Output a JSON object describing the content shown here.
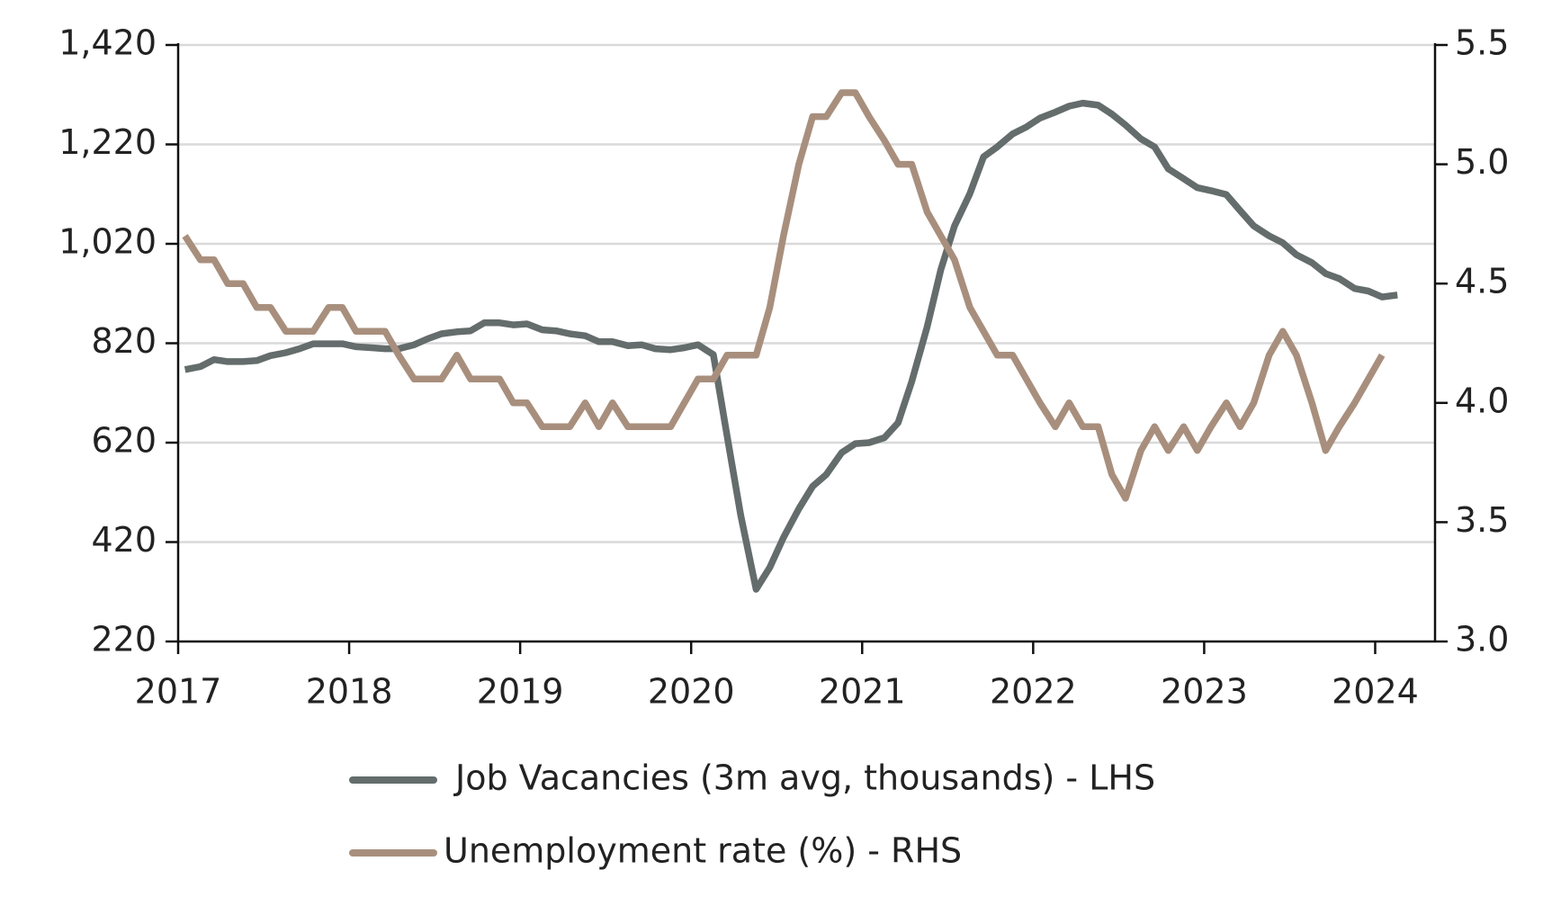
{
  "chart_data": {
    "type": "line",
    "x": [
      2017.04,
      2017.13,
      2017.21,
      2017.29,
      2017.38,
      2017.46,
      2017.54,
      2017.63,
      2017.71,
      2017.79,
      2017.88,
      2017.96,
      2018.04,
      2018.13,
      2018.21,
      2018.29,
      2018.38,
      2018.46,
      2018.54,
      2018.63,
      2018.71,
      2018.79,
      2018.88,
      2018.96,
      2019.04,
      2019.13,
      2019.21,
      2019.29,
      2019.38,
      2019.46,
      2019.54,
      2019.63,
      2019.71,
      2019.79,
      2019.88,
      2019.96,
      2020.04,
      2020.13,
      2020.21,
      2020.29,
      2020.38,
      2020.46,
      2020.54,
      2020.63,
      2020.71,
      2020.79,
      2020.88,
      2020.96,
      2021.04,
      2021.13,
      2021.21,
      2021.29,
      2021.38,
      2021.46,
      2021.54,
      2021.63,
      2021.71,
      2021.79,
      2021.88,
      2021.96,
      2022.04,
      2022.13,
      2022.21,
      2022.29,
      2022.38,
      2022.46,
      2022.54,
      2022.63,
      2022.71,
      2022.79,
      2022.88,
      2022.96,
      2023.04,
      2023.13,
      2023.21,
      2023.29,
      2023.38,
      2023.46,
      2023.54,
      2023.63,
      2023.71,
      2023.79,
      2023.88,
      2023.96,
      2024.04,
      2024.13
    ],
    "series": [
      {
        "name": "Job Vacancies (3m avg, thousands) - LHS",
        "color": "#646c6c",
        "axis": "y",
        "values": [
          767,
          773,
          787,
          783,
          783,
          785,
          795,
          801,
          809,
          819,
          819,
          819,
          813,
          811,
          809,
          809,
          817,
          829,
          839,
          843,
          845,
          861,
          861,
          857,
          859,
          847,
          845,
          839,
          835,
          823,
          823,
          815,
          817,
          809,
          807,
          811,
          817,
          797,
          634,
          474,
          325,
          369,
          429,
          487,
          532,
          556,
          600,
          618,
          620,
          630,
          660,
          743,
          853,
          968,
          1056,
          1121,
          1195,
          1215,
          1241,
          1255,
          1273,
          1285,
          1297,
          1303,
          1299,
          1281,
          1259,
          1231,
          1215,
          1171,
          1151,
          1133,
          1127,
          1119,
          1087,
          1056,
          1036,
          1022,
          998,
          982,
          960,
          950,
          930,
          925,
          913,
          917
        ]
      },
      {
        "name": "Unemployment rate (%) - RHS",
        "color": "#a88f7d",
        "axis": "y2",
        "values": [
          4.7,
          4.6,
          4.6,
          4.5,
          4.5,
          4.4,
          4.4,
          4.3,
          4.3,
          4.3,
          4.4,
          4.4,
          4.3,
          4.3,
          4.3,
          4.2,
          4.1,
          4.1,
          4.1,
          4.2,
          4.1,
          4.1,
          4.1,
          4.0,
          4.0,
          3.9,
          3.9,
          3.9,
          4.0,
          3.9,
          4.0,
          3.9,
          3.9,
          3.9,
          3.9,
          4.0,
          4.1,
          4.1,
          4.2,
          4.2,
          4.2,
          4.4,
          4.7,
          5.0,
          5.2,
          5.2,
          5.3,
          5.3,
          5.2,
          5.1,
          5.0,
          5.0,
          4.8,
          4.7,
          4.6,
          4.4,
          4.3,
          4.2,
          4.2,
          4.1,
          4.0,
          3.9,
          4.0,
          3.9,
          3.9,
          3.7,
          3.6,
          3.8,
          3.9,
          3.8,
          3.9,
          3.8,
          3.9,
          4.0,
          3.9,
          4.0,
          4.2,
          4.3,
          4.2,
          4.0,
          3.8,
          3.9,
          4.0,
          4.1,
          4.2,
          null
        ]
      }
    ],
    "xlim": [
      2017,
      2024.35
    ],
    "xticks": [
      2017,
      2018,
      2019,
      2020,
      2021,
      2022,
      2023,
      2024
    ],
    "ylim": [
      220,
      1420
    ],
    "yticks": [
      220,
      420,
      620,
      820,
      {
        "value": 1020,
        "label": "1,020"
      },
      {
        "value": 1220,
        "label": "1,220"
      },
      {
        "value": 1420,
        "label": "1,420"
      }
    ],
    "y2lim": [
      3,
      5.5
    ],
    "y2ticks": [
      {
        "value": 3,
        "label": "3.0"
      },
      {
        "value": 3.5,
        "label": "3.5"
      },
      {
        "value": 4,
        "label": "4.0"
      },
      {
        "value": 4.5,
        "label": "4.5"
      },
      {
        "value": 5,
        "label": "5.0"
      },
      {
        "value": 5.5,
        "label": "5.5"
      }
    ],
    "grid": true,
    "legend": "bottom"
  }
}
